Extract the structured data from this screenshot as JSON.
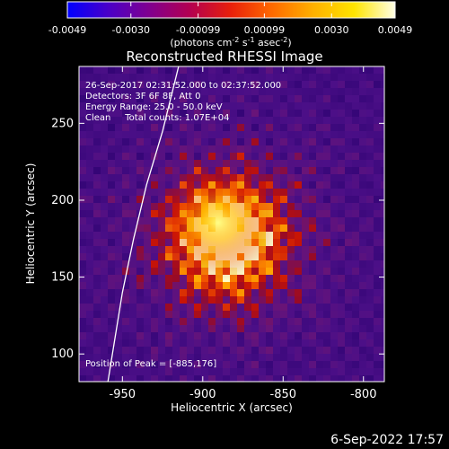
{
  "colorbar": {
    "ticks": [
      "-0.0049",
      "-0.0030",
      "-0.00099",
      "0.00099",
      "0.0030",
      "0.0049"
    ],
    "tick_values": [
      -0.0049,
      -0.003,
      -0.00099,
      0.00099,
      0.003,
      0.0049
    ],
    "range": [
      -0.0049,
      0.0049
    ],
    "units_prefix": "(photons cm",
    "units_exp1": "-2",
    "units_mid": " s",
    "units_exp2": "-1",
    "units_mid2": " asec",
    "units_exp3": "-2",
    "units_suffix": ")",
    "colors": [
      "#0000ff",
      "#4a00c8",
      "#80008f",
      "#b40050",
      "#e8200a",
      "#ff6a00",
      "#ffb000",
      "#ffe400",
      "#ffffe6"
    ]
  },
  "chart_data": {
    "type": "heatmap",
    "title": "Reconstructed RHESSI Image",
    "xlabel": "Heliocentric X (arcsec)",
    "ylabel": "Heliocentric Y (arcsec)",
    "xlim": [
      -977,
      -787
    ],
    "ylim": [
      82,
      287
    ],
    "x_ticks": [
      -950,
      -900,
      -850,
      -800
    ],
    "x_tick_labels": [
      "-950",
      "-900",
      "-850",
      "-800"
    ],
    "y_ticks": [
      100,
      150,
      200,
      250
    ],
    "y_tick_labels": [
      "100",
      "150",
      "200",
      "250"
    ],
    "peak": {
      "x": -885,
      "y": 176
    },
    "limb_arc_points": [
      [
        -959,
        82
      ],
      [
        -955,
        108
      ],
      [
        -950,
        140
      ],
      [
        -943,
        175
      ],
      [
        -935,
        210
      ],
      [
        -925,
        245
      ],
      [
        -915,
        287
      ]
    ],
    "annotations": [
      "26-Sep-2017 02:31:52.000 to 02:37:52.000",
      "Detectors: 3F 6F 8F, Att 0",
      "Energy Range: 25.0 - 50.0 keV",
      "Clean     Total counts: 1.07E+04"
    ],
    "peak_label": "Position of Peak = [-885,176]",
    "grid": false,
    "legend": "none"
  },
  "date_stamp": "6-Sep-2022 17:57"
}
